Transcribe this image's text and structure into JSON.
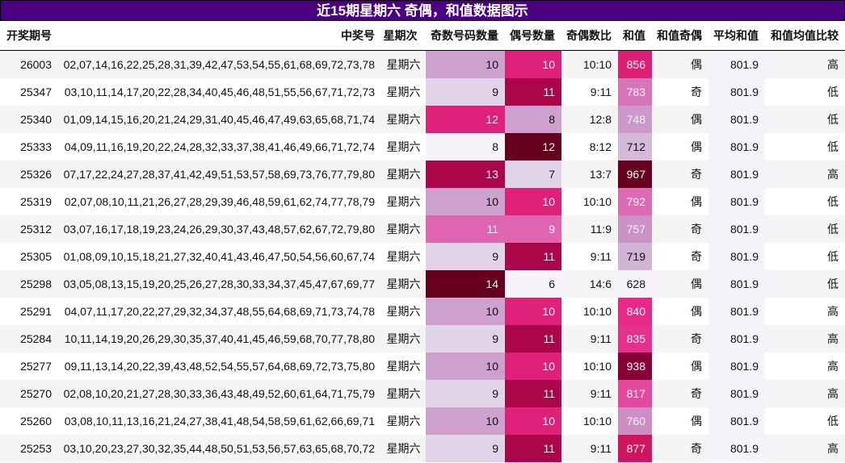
{
  "title": "近15期星期六 奇偶，和值数据图示",
  "colormap": [
    "#f7f4f9",
    "#e7e1ef",
    "#d4b9da",
    "#c994c7",
    "#df65b0",
    "#e7298a",
    "#ce1256",
    "#980043",
    "#67001f"
  ],
  "avg_cell_color": "#f7f4f9",
  "headers": [
    "开奖期号",
    "中奖号",
    "星期次",
    "奇数号码数量",
    "偶号数量",
    "奇偶数比",
    "和值",
    "和值奇偶",
    "平均和值",
    "和值均值比较"
  ],
  "rows": [
    [
      "26003",
      "02,07,14,16,22,25,28,31,39,42,47,53,54,55,61,68,69,72,73,78",
      "星期六",
      "10",
      "10",
      "10:10",
      "856",
      "偶",
      "801.9",
      "高"
    ],
    [
      "25347",
      "03,10,11,14,17,20,22,28,34,40,45,46,48,51,55,56,67,71,72,73",
      "星期六",
      "9",
      "11",
      "9:11",
      "783",
      "奇",
      "801.9",
      "低"
    ],
    [
      "25340",
      "01,09,14,15,16,20,21,24,29,31,40,45,46,47,49,63,65,68,71,74",
      "星期六",
      "12",
      "8",
      "12:8",
      "748",
      "偶",
      "801.9",
      "低"
    ],
    [
      "25333",
      "04,09,11,16,19,20,22,24,28,32,33,37,38,41,46,49,66,71,72,74",
      "星期六",
      "8",
      "12",
      "8:12",
      "712",
      "偶",
      "801.9",
      "低"
    ],
    [
      "25326",
      "07,17,22,24,27,28,37,41,42,49,51,53,57,58,69,73,76,77,79,80",
      "星期六",
      "13",
      "7",
      "13:7",
      "967",
      "奇",
      "801.9",
      "高"
    ],
    [
      "25319",
      "02,07,08,10,11,21,26,27,28,29,39,46,48,59,61,62,74,77,78,79",
      "星期六",
      "10",
      "10",
      "10:10",
      "792",
      "偶",
      "801.9",
      "低"
    ],
    [
      "25312",
      "03,07,16,17,18,19,23,24,26,29,30,37,43,48,57,62,67,72,79,80",
      "星期六",
      "11",
      "9",
      "11:9",
      "757",
      "奇",
      "801.9",
      "低"
    ],
    [
      "25305",
      "01,08,09,10,15,18,21,27,32,40,41,43,46,47,50,54,56,60,67,74",
      "星期六",
      "9",
      "11",
      "9:11",
      "719",
      "奇",
      "801.9",
      "低"
    ],
    [
      "25298",
      "03,05,08,13,15,19,20,25,26,27,28,30,33,34,37,45,47,67,69,77",
      "星期六",
      "14",
      "6",
      "14:6",
      "628",
      "偶",
      "801.9",
      "低"
    ],
    [
      "25291",
      "04,07,11,17,20,22,27,29,32,34,37,48,55,64,68,69,71,73,74,78",
      "星期六",
      "10",
      "10",
      "10:10",
      "840",
      "偶",
      "801.9",
      "高"
    ],
    [
      "25284",
      "10,11,14,19,20,26,29,30,35,37,40,41,45,46,59,68,70,77,78,80",
      "星期六",
      "9",
      "11",
      "9:11",
      "835",
      "奇",
      "801.9",
      "高"
    ],
    [
      "25277",
      "09,11,13,14,20,22,39,43,48,52,54,55,57,64,68,69,72,73,75,80",
      "星期六",
      "10",
      "10",
      "10:10",
      "938",
      "偶",
      "801.9",
      "高"
    ],
    [
      "25270",
      "02,08,10,20,21,27,28,30,33,36,43,48,49,52,60,61,64,71,75,79",
      "星期六",
      "9",
      "11",
      "9:11",
      "817",
      "奇",
      "801.9",
      "高"
    ],
    [
      "25260",
      "03,08,10,11,13,16,21,24,27,38,41,48,54,58,59,61,62,66,69,71",
      "星期六",
      "10",
      "10",
      "10:10",
      "760",
      "偶",
      "801.9",
      "低"
    ],
    [
      "25253",
      "03,10,20,23,27,30,32,35,44,48,50,51,53,56,57,63,65,68,70,72",
      "星期六",
      "9",
      "11",
      "9:11",
      "877",
      "奇",
      "801.9",
      "高"
    ]
  ]
}
